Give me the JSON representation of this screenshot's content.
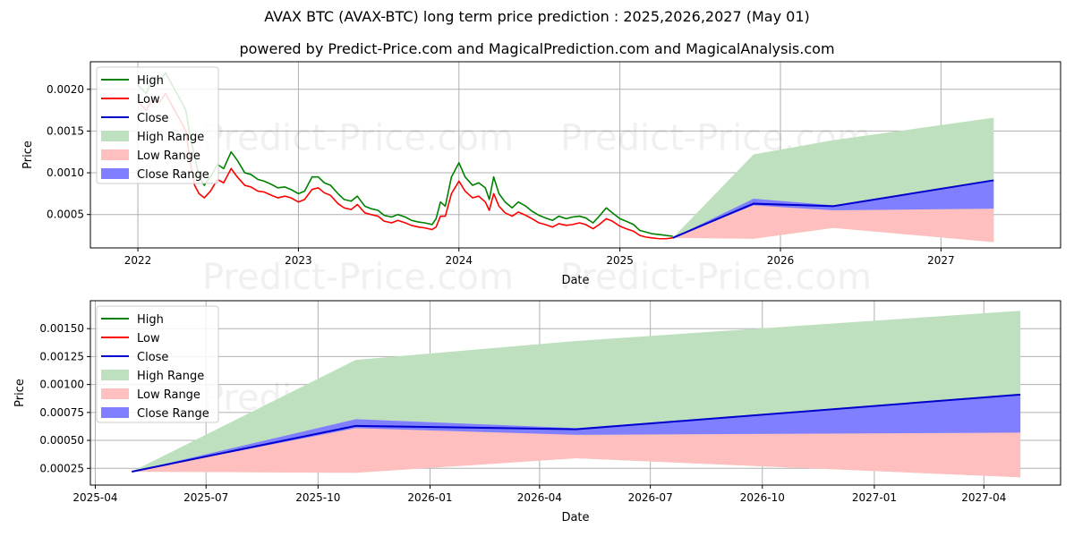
{
  "title": "AVAX BTC (AVAX-BTC) long term price prediction : 2025,2026,2027 (May 01)",
  "subtitle": "powered by Predict-Price.com and MagicalPrediction.com and MagicalAnalysis.com",
  "watermark": "Predict-Price.com",
  "colors": {
    "high": "#008000",
    "low": "#ff0000",
    "close": "#0000cc",
    "high_range": "#bfe0bf",
    "low_range": "#ffbfbf",
    "close_range": "#7f7fff"
  },
  "chart_data": [
    {
      "type": "line",
      "xlabel": "Date",
      "ylabel": "Price",
      "x_ticks": [
        "2022",
        "2023",
        "2024",
        "2025",
        "2026",
        "2027"
      ],
      "y_ticks": [
        "0.0005",
        "0.0010",
        "0.0015",
        "0.0020"
      ],
      "xlim": [
        "2021-09-15",
        "2027-09-30"
      ],
      "ylim": [
        0.0001,
        0.00233
      ],
      "grid": true,
      "legend_position": "top-left",
      "legend": [
        "High",
        "Low",
        "Close",
        "High Range",
        "Low Range",
        "Close Range"
      ],
      "history": {
        "dates": [
          "2022-01-01",
          "2022-01-20",
          "2022-02-05",
          "2022-02-20",
          "2022-03-05",
          "2022-03-20",
          "2022-04-05",
          "2022-04-20",
          "2022-05-01",
          "2022-05-10",
          "2022-05-20",
          "2022-06-01",
          "2022-06-15",
          "2022-07-01",
          "2022-07-15",
          "2022-08-01",
          "2022-08-15",
          "2022-09-01",
          "2022-09-15",
          "2022-10-01",
          "2022-10-15",
          "2022-11-01",
          "2022-11-15",
          "2022-12-01",
          "2022-12-15",
          "2023-01-01",
          "2023-01-15",
          "2023-02-01",
          "2023-02-15",
          "2023-03-01",
          "2023-03-15",
          "2023-04-01",
          "2023-04-15",
          "2023-05-01",
          "2023-05-15",
          "2023-06-01",
          "2023-06-15",
          "2023-07-01",
          "2023-07-15",
          "2023-08-01",
          "2023-08-15",
          "2023-09-01",
          "2023-09-15",
          "2023-10-01",
          "2023-10-15",
          "2023-11-01",
          "2023-11-10",
          "2023-11-20",
          "2023-12-01",
          "2023-12-15",
          "2024-01-01",
          "2024-01-15",
          "2024-02-01",
          "2024-02-15",
          "2024-03-01",
          "2024-03-10",
          "2024-03-20",
          "2024-04-01",
          "2024-04-15",
          "2024-05-01",
          "2024-05-15",
          "2024-06-01",
          "2024-06-15",
          "2024-07-01",
          "2024-07-15",
          "2024-08-01",
          "2024-08-15",
          "2024-09-01",
          "2024-09-15",
          "2024-10-01",
          "2024-10-15",
          "2024-11-01",
          "2024-11-15",
          "2024-12-01",
          "2024-12-15",
          "2025-01-01",
          "2025-01-15",
          "2025-02-01",
          "2025-02-15",
          "2025-03-01",
          "2025-03-15",
          "2025-04-01",
          "2025-04-15",
          "2025-05-01"
        ],
        "high": [
          0.00205,
          0.00195,
          0.00215,
          0.0021,
          0.0022,
          0.00205,
          0.0019,
          0.00175,
          0.0014,
          0.0012,
          0.00095,
          0.00085,
          0.00095,
          0.0011,
          0.00105,
          0.00125,
          0.00115,
          0.001,
          0.00098,
          0.00092,
          0.0009,
          0.00086,
          0.00082,
          0.00083,
          0.0008,
          0.00075,
          0.00078,
          0.00095,
          0.00095,
          0.00088,
          0.00085,
          0.00075,
          0.00068,
          0.00066,
          0.00072,
          0.0006,
          0.00057,
          0.00055,
          0.00049,
          0.00047,
          0.0005,
          0.00047,
          0.00043,
          0.00041,
          0.0004,
          0.00038,
          0.00045,
          0.00065,
          0.0006,
          0.00095,
          0.00112,
          0.00095,
          0.00085,
          0.00088,
          0.00082,
          0.00068,
          0.00095,
          0.00075,
          0.00065,
          0.00058,
          0.00065,
          0.0006,
          0.00054,
          0.00049,
          0.00046,
          0.00043,
          0.00048,
          0.00045,
          0.00047,
          0.00048,
          0.00046,
          0.0004,
          0.00048,
          0.00058,
          0.00052,
          0.00045,
          0.00042,
          0.00038,
          0.00031,
          0.00029,
          0.00027,
          0.00026,
          0.00025,
          0.00024
        ],
        "low": [
          0.00185,
          0.00175,
          0.0019,
          0.00185,
          0.00195,
          0.0018,
          0.00165,
          0.0015,
          0.0011,
          0.00085,
          0.00075,
          0.0007,
          0.00078,
          0.00092,
          0.00088,
          0.00105,
          0.00095,
          0.00085,
          0.00083,
          0.00078,
          0.00077,
          0.00073,
          0.0007,
          0.00072,
          0.0007,
          0.00065,
          0.00068,
          0.0008,
          0.00082,
          0.00076,
          0.00073,
          0.00063,
          0.00058,
          0.00056,
          0.00062,
          0.00052,
          0.0005,
          0.00048,
          0.00042,
          0.0004,
          0.00043,
          0.0004,
          0.00037,
          0.00035,
          0.00034,
          0.00032,
          0.00035,
          0.00048,
          0.00048,
          0.00075,
          0.0009,
          0.00078,
          0.0007,
          0.00072,
          0.00065,
          0.00055,
          0.00075,
          0.0006,
          0.00052,
          0.00048,
          0.00053,
          0.00049,
          0.00045,
          0.0004,
          0.00038,
          0.00035,
          0.00039,
          0.00037,
          0.00038,
          0.0004,
          0.00038,
          0.00033,
          0.00038,
          0.00045,
          0.00042,
          0.00036,
          0.00033,
          0.0003,
          0.00025,
          0.00023,
          0.00022,
          0.00021,
          0.00021,
          0.00022
        ]
      },
      "forecast": {
        "dates": [
          "2025-05-01",
          "2025-11-01",
          "2026-05-01",
          "2027-05-01"
        ],
        "close": [
          0.00022,
          0.00063,
          0.0006,
          0.00091
        ],
        "high_range": [
          [
            0.00022,
            0.00022
          ],
          [
            0.00021,
            0.00122
          ],
          [
            0.00034,
            0.00139
          ],
          [
            0.00017,
            0.00166
          ]
        ],
        "low_range": [
          [
            0.00022,
            0.00022
          ],
          [
            0.00021,
            0.00063
          ],
          [
            0.00034,
            0.00055
          ],
          [
            0.00017,
            0.00057
          ]
        ],
        "close_range": [
          [
            0.00022,
            0.00022
          ],
          [
            0.00061,
            0.00069
          ],
          [
            0.00055,
            0.00061
          ],
          [
            0.00057,
            0.00091
          ]
        ]
      }
    },
    {
      "type": "area",
      "xlabel": "Date",
      "ylabel": "Price",
      "x_ticks": [
        "2025-04",
        "2025-07",
        "2025-10",
        "2026-01",
        "2026-04",
        "2026-07",
        "2026-10",
        "2027-01",
        "2027-04"
      ],
      "y_ticks": [
        "0.00025",
        "0.00050",
        "0.00075",
        "0.00100",
        "0.00125",
        "0.00150"
      ],
      "xlim": [
        "2025-03-28",
        "2027-06-03"
      ],
      "ylim": [
        0.0001,
        0.00175
      ],
      "grid": true,
      "legend_position": "top-left",
      "legend": [
        "High",
        "Low",
        "Close",
        "High Range",
        "Low Range",
        "Close Range"
      ],
      "forecast": {
        "dates": [
          "2025-05-01",
          "2025-11-01",
          "2026-05-01",
          "2027-05-01"
        ],
        "close": [
          0.00022,
          0.00063,
          0.0006,
          0.00091
        ],
        "high_range": [
          [
            0.00022,
            0.00022
          ],
          [
            0.00021,
            0.00122
          ],
          [
            0.00034,
            0.00139
          ],
          [
            0.00017,
            0.00166
          ]
        ],
        "low_range": [
          [
            0.00022,
            0.00022
          ],
          [
            0.00021,
            0.00063
          ],
          [
            0.00034,
            0.00055
          ],
          [
            0.00017,
            0.00057
          ]
        ],
        "close_range": [
          [
            0.00022,
            0.00022
          ],
          [
            0.00061,
            0.00069
          ],
          [
            0.00055,
            0.00061
          ],
          [
            0.00057,
            0.00091
          ]
        ]
      }
    }
  ]
}
